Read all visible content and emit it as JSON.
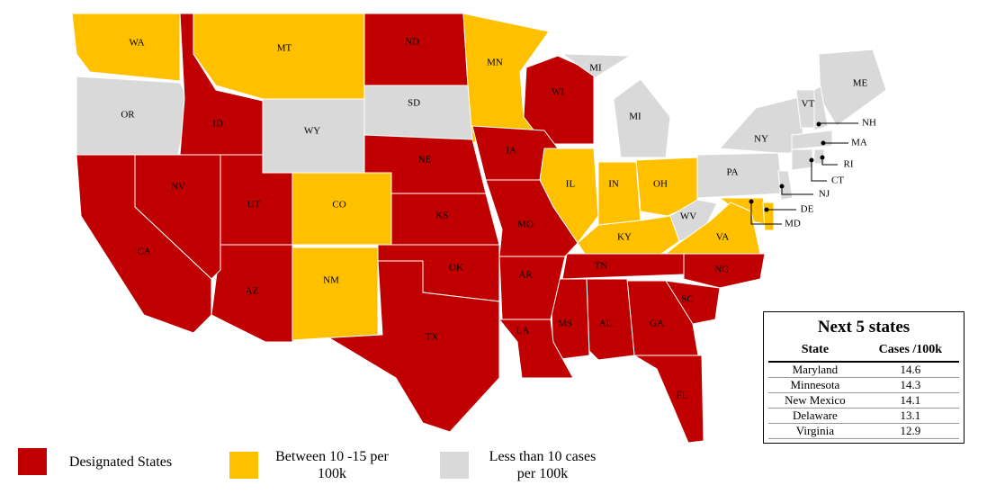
{
  "map": {
    "states": [
      {
        "label": "WA",
        "color": "#ffc000"
      },
      {
        "label": "OR",
        "color": "#d9d9d9"
      },
      {
        "label": "ID",
        "color": "#c00000"
      },
      {
        "label": "MT",
        "color": "#ffc000"
      },
      {
        "label": "ND",
        "color": "#c00000"
      },
      {
        "label": "MN",
        "color": "#ffc000"
      },
      {
        "label": "WI",
        "color": "#c00000"
      },
      {
        "label": "MI",
        "color": "#d9d9d9"
      },
      {
        "label": "MI",
        "color": "#d9d9d9"
      },
      {
        "label": "WY",
        "color": "#d9d9d9"
      },
      {
        "label": "SD",
        "color": "#d9d9d9"
      },
      {
        "label": "NE",
        "color": "#c00000"
      },
      {
        "label": "IA",
        "color": "#c00000"
      },
      {
        "label": "IL",
        "color": "#ffc000"
      },
      {
        "label": "IN",
        "color": "#ffc000"
      },
      {
        "label": "OH",
        "color": "#ffc000"
      },
      {
        "label": "PA",
        "color": "#d9d9d9"
      },
      {
        "label": "NY",
        "color": "#d9d9d9"
      },
      {
        "label": "VT",
        "color": "#d9d9d9"
      },
      {
        "label": "ME",
        "color": "#d9d9d9"
      },
      {
        "label": "NH",
        "color": "#d9d9d9"
      },
      {
        "label": "MA",
        "color": "#d9d9d9"
      },
      {
        "label": "CT",
        "color": "#d9d9d9"
      },
      {
        "label": "RI",
        "color": "#d9d9d9"
      },
      {
        "label": "NJ",
        "color": "#d9d9d9"
      },
      {
        "label": "MD",
        "color": "#ffc000"
      },
      {
        "label": "DE",
        "color": "#ffc000"
      },
      {
        "label": "WV",
        "color": "#d9d9d9"
      },
      {
        "label": "VA",
        "color": "#ffc000"
      },
      {
        "label": "KY",
        "color": "#ffc000"
      },
      {
        "label": "TN",
        "color": "#c00000"
      },
      {
        "label": "NC",
        "color": "#c00000"
      },
      {
        "label": "SC",
        "color": "#c00000"
      },
      {
        "label": "GA",
        "color": "#c00000"
      },
      {
        "label": "FL",
        "color": "#c00000"
      },
      {
        "label": "AL",
        "color": "#c00000"
      },
      {
        "label": "MS",
        "color": "#c00000"
      },
      {
        "label": "LA",
        "color": "#c00000"
      },
      {
        "label": "AR",
        "color": "#c00000"
      },
      {
        "label": "MO",
        "color": "#c00000"
      },
      {
        "label": "KS",
        "color": "#c00000"
      },
      {
        "label": "OK",
        "color": "#c00000"
      },
      {
        "label": "TX",
        "color": "#c00000"
      },
      {
        "label": "NM",
        "color": "#ffc000"
      },
      {
        "label": "CO",
        "color": "#ffc000"
      },
      {
        "label": "UT",
        "color": "#c00000"
      },
      {
        "label": "AZ",
        "color": "#c00000"
      },
      {
        "label": "NV",
        "color": "#c00000"
      },
      {
        "label": "CA",
        "color": "#c00000"
      }
    ],
    "legend": [
      {
        "label": "Designated States",
        "color": "#c00000"
      },
      {
        "label": "Between 10 -15 per 100k",
        "color": "#ffc000"
      },
      {
        "label": "Less than 10 cases per 100k",
        "color": "#d9d9d9"
      }
    ]
  },
  "table": {
    "title": "Next 5 states",
    "headers": [
      "State",
      "Cases /100k"
    ],
    "rows": [
      [
        "Maryland",
        "14.6"
      ],
      [
        "Minnesota",
        "14.3"
      ],
      [
        "New Mexico",
        "14.1"
      ],
      [
        "Delaware",
        "13.1"
      ],
      [
        "Virginia",
        "12.9"
      ]
    ]
  }
}
